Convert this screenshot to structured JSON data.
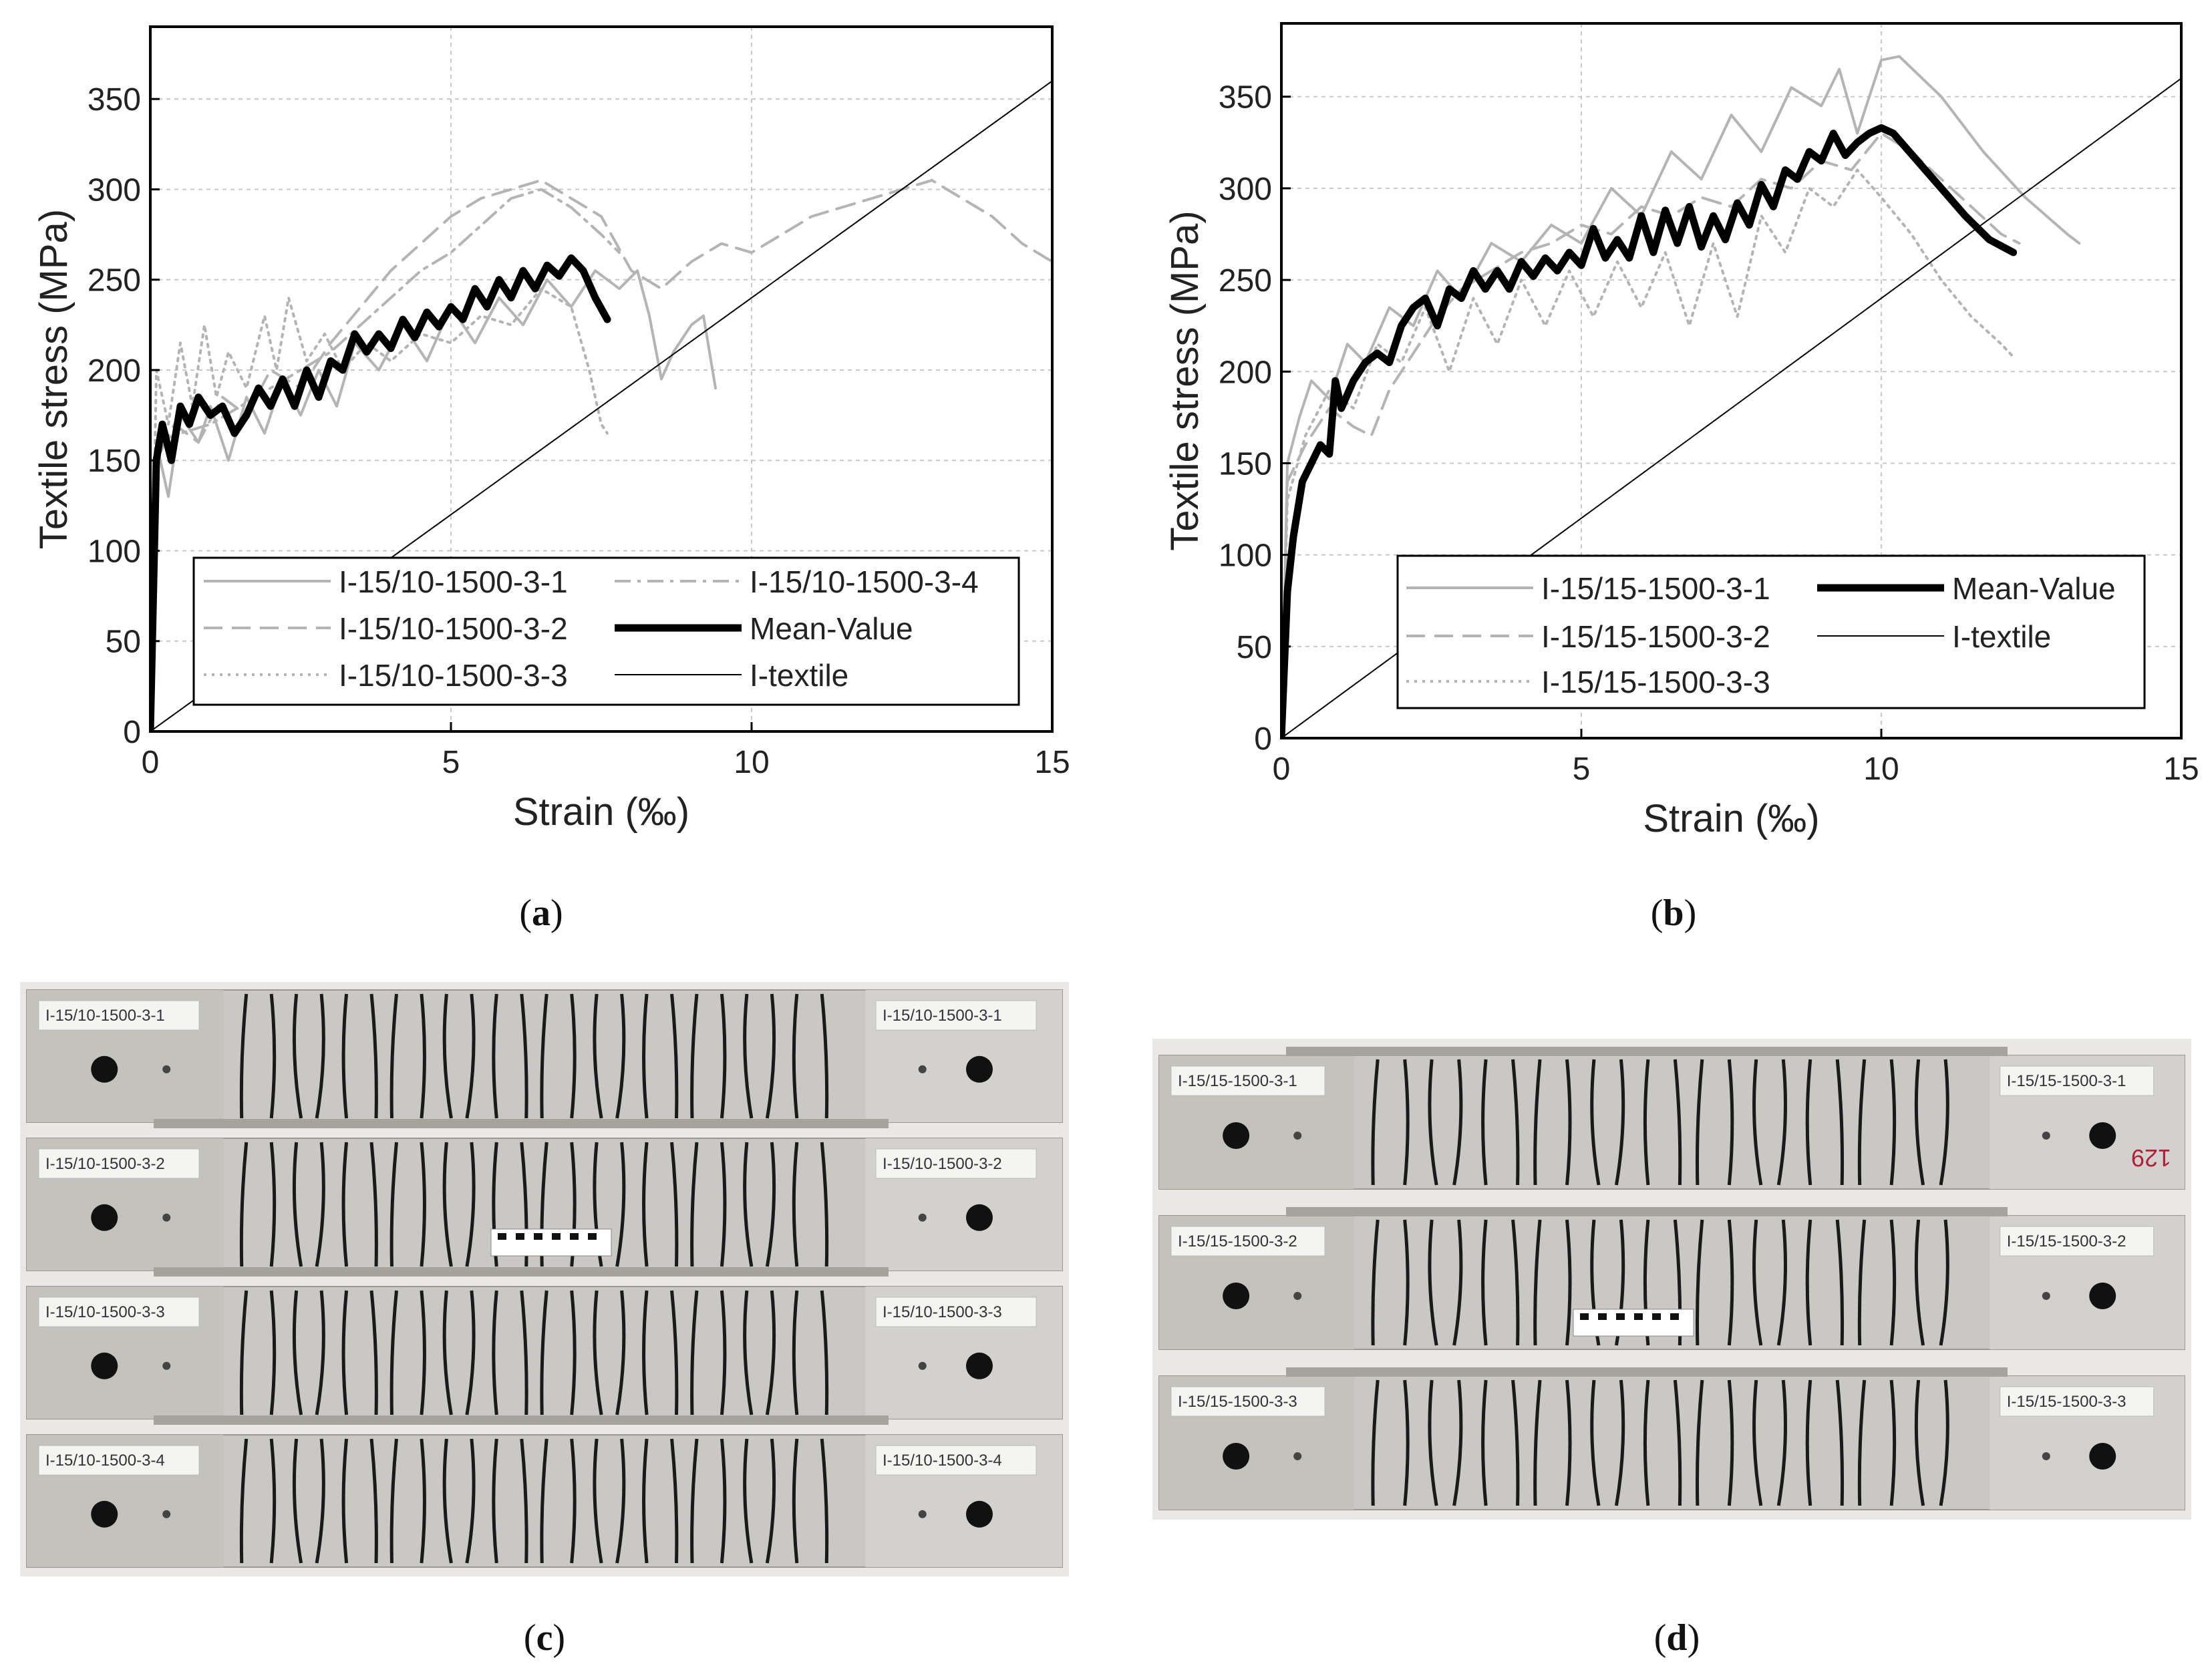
{
  "captions": {
    "a": "a",
    "b": "b",
    "c": "c",
    "d": "d"
  },
  "chart_data": [
    {
      "type": "line",
      "panel": "a",
      "xlabel": "Strain (‰)",
      "ylabel": "Textile stress (MPa)",
      "xlim": [
        0,
        15
      ],
      "ylim": [
        0,
        390
      ],
      "xticks": [
        0,
        5,
        10,
        15
      ],
      "yticks": [
        0,
        50,
        100,
        150,
        200,
        250,
        300,
        350
      ],
      "grid": true,
      "legend_position": "bottom-right",
      "series": [
        {
          "name": "I-15/10-1500-3-1",
          "style": "solid-gray",
          "x": [
            0,
            0.1,
            0.3,
            0.5,
            0.8,
            1.0,
            1.3,
            1.6,
            1.9,
            2.2,
            2.5,
            2.8,
            3.1,
            3.4,
            3.8,
            4.2,
            4.6,
            5.0,
            5.4,
            5.8,
            6.2,
            6.6,
            7.0,
            7.4,
            7.8,
            8.1,
            8.3,
            8.5,
            8.7,
            9.0,
            9.2,
            9.4
          ],
          "y": [
            0,
            160,
            130,
            175,
            160,
            180,
            150,
            185,
            165,
            195,
            175,
            200,
            180,
            215,
            200,
            225,
            205,
            235,
            215,
            240,
            225,
            250,
            235,
            255,
            245,
            255,
            230,
            195,
            210,
            225,
            230,
            190
          ]
        },
        {
          "name": "I-15/10-1500-3-2",
          "style": "dashed-gray",
          "x": [
            0,
            0.1,
            0.4,
            0.8,
            1.2,
            1.6,
            2.0,
            2.5,
            3.0,
            3.5,
            4.0,
            4.5,
            5.0,
            5.5,
            6.0,
            6.5,
            7.0,
            7.5,
            8.0,
            8.5,
            9.0,
            9.5,
            10.0,
            10.5,
            11.0,
            11.5,
            12.0,
            12.5,
            13.0,
            13.5,
            14.0,
            14.5,
            15.0
          ],
          "y": [
            0,
            150,
            170,
            160,
            185,
            175,
            200,
            190,
            215,
            235,
            255,
            270,
            285,
            295,
            300,
            305,
            295,
            285,
            255,
            245,
            260,
            270,
            265,
            275,
            285,
            290,
            295,
            300,
            305,
            295,
            285,
            270,
            260
          ]
        },
        {
          "name": "I-15/10-1500-3-3",
          "style": "dotted-gray",
          "x": [
            0,
            0.1,
            0.3,
            0.5,
            0.7,
            0.9,
            1.1,
            1.3,
            1.6,
            1.9,
            2.1,
            2.3,
            2.6,
            2.9,
            3.2,
            3.6,
            4.0,
            4.5,
            5.0,
            5.5,
            6.0,
            6.5,
            7.0,
            7.3,
            7.5,
            7.6
          ],
          "y": [
            0,
            200,
            170,
            215,
            180,
            225,
            185,
            210,
            190,
            230,
            200,
            240,
            205,
            220,
            200,
            215,
            205,
            220,
            215,
            230,
            225,
            245,
            235,
            200,
            170,
            165
          ]
        },
        {
          "name": "I-15/10-1500-3-4",
          "style": "dashdot-gray",
          "x": [
            0,
            0.1,
            0.5,
            1.0,
            1.5,
            2.0,
            2.5,
            3.0,
            3.5,
            4.0,
            4.5,
            5.0,
            5.5,
            6.0,
            6.5,
            7.0,
            7.5,
            7.8
          ],
          "y": [
            0,
            160,
            165,
            170,
            180,
            190,
            200,
            210,
            225,
            240,
            255,
            265,
            280,
            295,
            300,
            290,
            275,
            265
          ]
        },
        {
          "name": "Mean-Value",
          "style": "thick-black",
          "x": [
            0,
            0.1,
            0.2,
            0.35,
            0.5,
            0.65,
            0.8,
            1.0,
            1.2,
            1.4,
            1.6,
            1.8,
            2.0,
            2.2,
            2.4,
            2.6,
            2.8,
            3.0,
            3.2,
            3.4,
            3.6,
            3.8,
            4.0,
            4.2,
            4.4,
            4.6,
            4.8,
            5.0,
            5.2,
            5.4,
            5.6,
            5.8,
            6.0,
            6.2,
            6.4,
            6.6,
            6.8,
            7.0,
            7.2,
            7.4,
            7.6
          ],
          "y": [
            0,
            150,
            170,
            150,
            180,
            170,
            185,
            175,
            180,
            165,
            175,
            190,
            180,
            195,
            180,
            200,
            185,
            205,
            200,
            220,
            210,
            220,
            212,
            228,
            218,
            232,
            224,
            235,
            228,
            245,
            235,
            250,
            240,
            255,
            245,
            258,
            252,
            262,
            255,
            240,
            228
          ]
        },
        {
          "name": "I-textile",
          "style": "thin-black",
          "x": [
            0,
            15
          ],
          "y": [
            0,
            360
          ]
        }
      ]
    },
    {
      "type": "line",
      "panel": "b",
      "xlabel": "Strain (‰)",
      "ylabel": "Textile stress (MPa)",
      "xlim": [
        0,
        15
      ],
      "ylim": [
        0,
        390
      ],
      "xticks": [
        0,
        5,
        10,
        15
      ],
      "yticks": [
        0,
        50,
        100,
        150,
        200,
        250,
        300,
        350
      ],
      "grid": true,
      "legend_position": "bottom-right",
      "series": [
        {
          "name": "I-15/15-1500-3-1",
          "style": "solid-gray",
          "x": [
            0,
            0.1,
            0.3,
            0.5,
            0.8,
            1.1,
            1.4,
            1.8,
            2.2,
            2.6,
            3.0,
            3.5,
            4.0,
            4.5,
            5.0,
            5.5,
            6.0,
            6.5,
            7.0,
            7.5,
            8.0,
            8.5,
            9.0,
            9.3,
            9.6,
            10.0,
            10.3,
            11.0,
            11.7,
            12.4,
            13.1,
            13.3
          ],
          "y": [
            0,
            150,
            175,
            195,
            185,
            215,
            205,
            235,
            225,
            255,
            240,
            270,
            260,
            280,
            270,
            300,
            285,
            320,
            305,
            340,
            320,
            355,
            345,
            365,
            330,
            370,
            372,
            350,
            320,
            295,
            275,
            270
          ]
        },
        {
          "name": "I-15/15-1500-3-2",
          "style": "dashed-gray",
          "x": [
            0,
            0.1,
            0.4,
            0.8,
            1.2,
            1.5,
            1.8,
            2.2,
            2.6,
            3.0,
            3.5,
            4.0,
            4.5,
            5.0,
            5.5,
            6.0,
            6.5,
            7.0,
            7.5,
            8.0,
            8.5,
            9.0,
            9.5,
            10.0,
            10.5,
            11.0,
            11.5,
            12.0,
            12.3
          ],
          "y": [
            0,
            140,
            160,
            180,
            170,
            165,
            190,
            210,
            230,
            245,
            255,
            265,
            270,
            280,
            275,
            290,
            285,
            295,
            290,
            305,
            300,
            315,
            310,
            330,
            320,
            305,
            290,
            275,
            270
          ]
        },
        {
          "name": "I-15/15-1500-3-3",
          "style": "dotted-gray",
          "x": [
            0,
            0.1,
            0.4,
            0.8,
            1.2,
            1.6,
            2.0,
            2.4,
            2.8,
            3.2,
            3.6,
            4.0,
            4.4,
            4.8,
            5.2,
            5.6,
            6.0,
            6.4,
            6.8,
            7.2,
            7.6,
            8.0,
            8.4,
            8.8,
            9.2,
            9.6,
            10.0,
            10.5,
            11.0,
            11.5,
            12.0,
            12.2
          ],
          "y": [
            0,
            130,
            165,
            190,
            180,
            215,
            205,
            235,
            200,
            240,
            215,
            250,
            225,
            255,
            230,
            260,
            235,
            265,
            225,
            270,
            230,
            285,
            265,
            300,
            290,
            310,
            295,
            275,
            250,
            230,
            215,
            208
          ]
        },
        {
          "name": "Mean-Value",
          "style": "thick-black",
          "x": [
            0,
            0.1,
            0.2,
            0.35,
            0.5,
            0.65,
            0.8,
            0.9,
            1.0,
            1.2,
            1.4,
            1.6,
            1.8,
            2.0,
            2.2,
            2.4,
            2.6,
            2.8,
            3.0,
            3.2,
            3.4,
            3.6,
            3.8,
            4.0,
            4.2,
            4.4,
            4.6,
            4.8,
            5.0,
            5.2,
            5.4,
            5.6,
            5.8,
            6.0,
            6.2,
            6.4,
            6.6,
            6.8,
            7.0,
            7.2,
            7.4,
            7.6,
            7.8,
            8.0,
            8.2,
            8.4,
            8.6,
            8.8,
            9.0,
            9.2,
            9.4,
            9.6,
            9.8,
            10.0,
            10.2,
            10.6,
            11.0,
            11.4,
            11.8,
            12.2
          ],
          "y": [
            0,
            80,
            110,
            140,
            150,
            160,
            155,
            195,
            180,
            195,
            205,
            210,
            205,
            225,
            235,
            240,
            225,
            245,
            240,
            255,
            245,
            255,
            245,
            260,
            252,
            262,
            255,
            265,
            258,
            278,
            262,
            272,
            262,
            285,
            265,
            288,
            270,
            290,
            268,
            285,
            272,
            292,
            280,
            302,
            290,
            310,
            305,
            320,
            315,
            330,
            318,
            325,
            330,
            333,
            330,
            315,
            300,
            285,
            272,
            265
          ]
        },
        {
          "name": "I-textile",
          "style": "thin-black",
          "x": [
            0,
            15
          ],
          "y": [
            0,
            360
          ]
        }
      ]
    }
  ],
  "photos": {
    "c": {
      "labels": [
        "I-15/10-1500-3-1",
        "I-15/10-1500-3-1",
        "I-15/10-1500-3-2",
        "I-15/10-1500-3-2",
        "I-15/10-1500-3-3",
        "I-15/10-1500-3-3",
        "I-15/10-1500-3-4",
        "I-15/10-1500-3-4"
      ]
    },
    "d": {
      "labels": [
        "I-15/15-1500-3-1",
        "I-15/15-1500-3-1",
        "I-15/15-1500-3-2",
        "I-15/15-1500-3-2",
        "I-15/15-1500-3-3",
        "I-15/15-1500-3-3"
      ],
      "mark": "129"
    }
  }
}
